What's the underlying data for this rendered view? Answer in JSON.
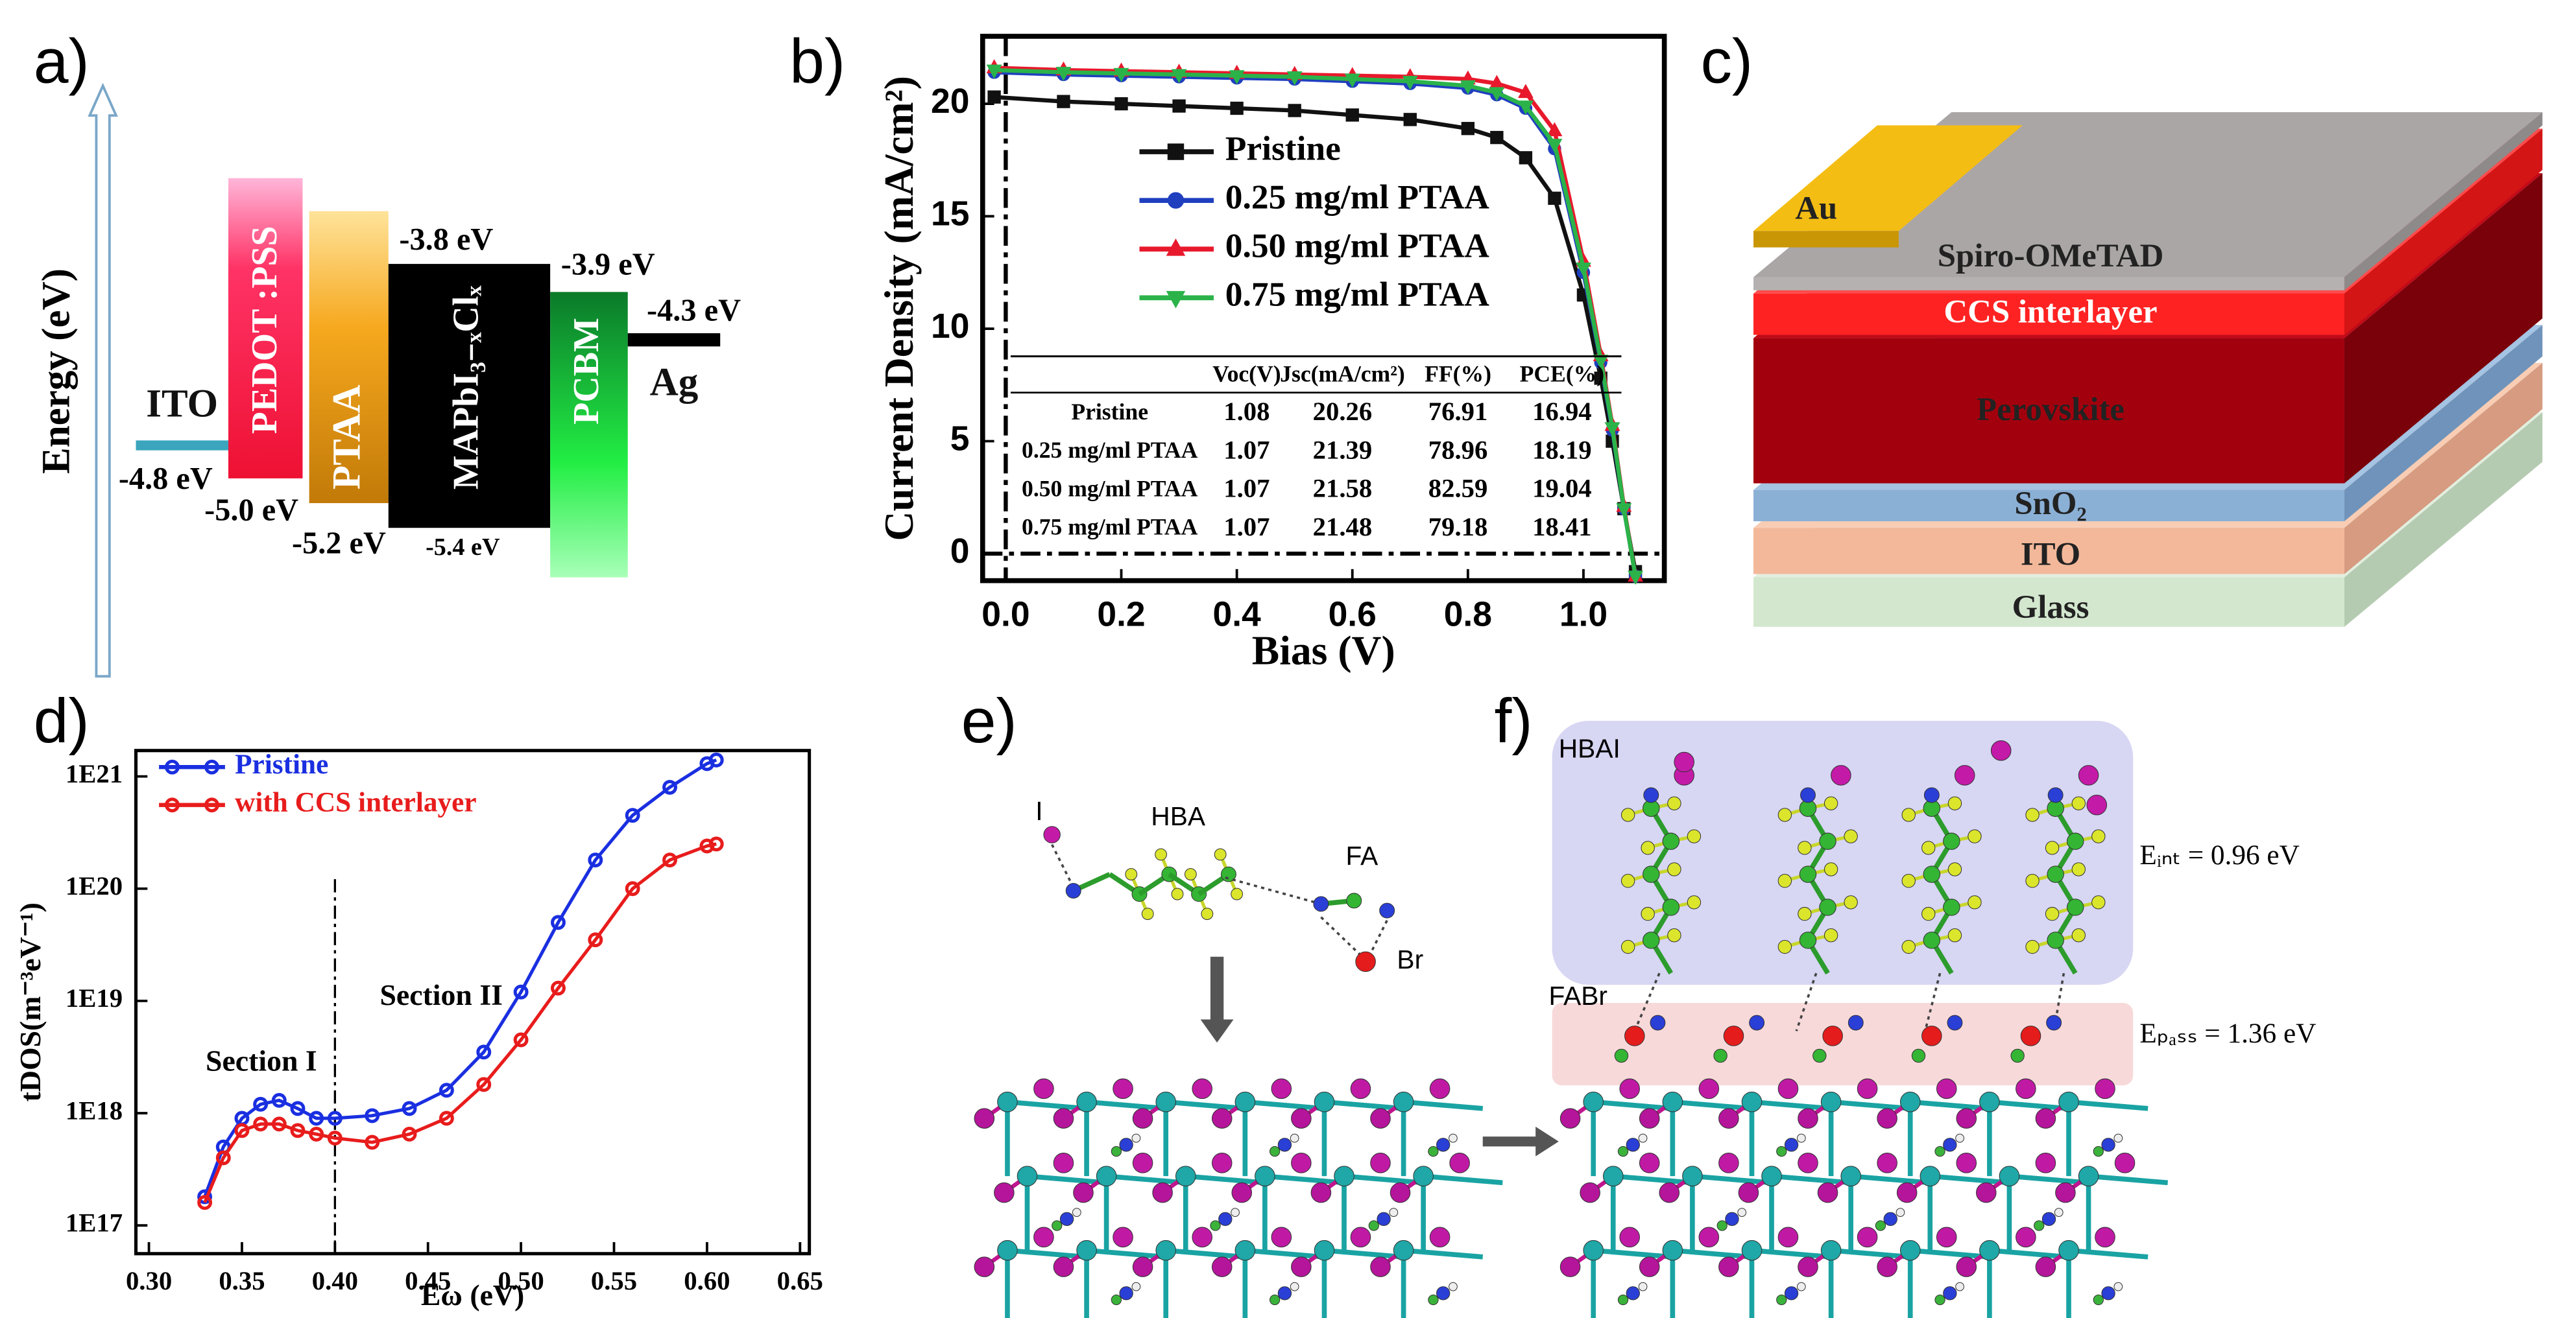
{
  "panel_labels": [
    "a)",
    "b)",
    "c)",
    "d)",
    "e)",
    "f)"
  ],
  "energy_diagram": {
    "axis_label": "Energy (eV)",
    "layers": [
      {
        "name": "ITO",
        "levels": [
          "-4.8 eV"
        ]
      },
      {
        "name": "PEDOT :PSS",
        "levels": [
          "-5.0 eV"
        ]
      },
      {
        "name": "PTAA",
        "levels": [
          "-5.2 eV"
        ]
      },
      {
        "name": "MAPbI₃₋ₓClₓ",
        "levels": [
          "-3.8 eV",
          "-5.4 eV"
        ]
      },
      {
        "name": "PCBM",
        "levels": [
          "-3.9 eV"
        ]
      },
      {
        "name": "Ag",
        "levels": [
          "-4.3 eV"
        ]
      }
    ]
  },
  "device_stack": {
    "electrode": "Au",
    "layers": [
      "Spiro-OMeTAD",
      "CCS interlayer",
      "Perovskite",
      "SnO₂",
      "ITO",
      "Glass"
    ]
  },
  "molecule_e": {
    "labels": [
      "I",
      "HBA",
      "FA",
      "Br"
    ]
  },
  "molecule_f": {
    "labels": [
      "HBAI",
      "FABr"
    ],
    "energies": [
      "Eᵢₙₜ = 0.96 eV",
      "Eₚₐₛₛ = 1.36 eV"
    ]
  },
  "chart_data": [
    {
      "type": "line",
      "x_label": "Bias (V)",
      "y_label": "Current Density (mA/cm²)",
      "x": [
        -0.02,
        0.1,
        0.2,
        0.3,
        0.4,
        0.5,
        0.6,
        0.7,
        0.8,
        0.85,
        0.9,
        0.95,
        1.0,
        1.03,
        1.05,
        1.07,
        1.09
      ],
      "series": [
        {
          "name": "Pristine",
          "color": "#111111",
          "marker": "square",
          "values": [
            20.3,
            20.1,
            20.0,
            19.9,
            19.8,
            19.7,
            19.5,
            19.3,
            18.9,
            18.5,
            17.6,
            15.8,
            11.5,
            7.8,
            5.0,
            2.0,
            -0.8
          ]
        },
        {
          "name": "0.25 mg/ml PTAA",
          "color": "#1f3fbf",
          "marker": "circle",
          "values": [
            21.4,
            21.3,
            21.25,
            21.2,
            21.15,
            21.1,
            21.0,
            20.9,
            20.7,
            20.4,
            19.8,
            18.0,
            12.5,
            8.5,
            5.5,
            2.0,
            -1.0
          ]
        },
        {
          "name": "0.50 mg/ml PTAA",
          "color": "#e8192c",
          "marker": "triangle-up",
          "values": [
            21.6,
            21.5,
            21.45,
            21.4,
            21.35,
            21.3,
            21.25,
            21.2,
            21.1,
            20.9,
            20.5,
            18.8,
            13.0,
            8.8,
            5.7,
            2.1,
            -1.0
          ]
        },
        {
          "name": "0.75 mg/ml PTAA",
          "color": "#2bb34a",
          "marker": "triangle-down",
          "values": [
            21.5,
            21.4,
            21.35,
            21.3,
            21.25,
            21.2,
            21.1,
            21.0,
            20.8,
            20.5,
            19.9,
            18.2,
            12.7,
            8.6,
            5.6,
            2.0,
            -1.0
          ]
        }
      ],
      "xlim": [
        -0.04,
        1.14
      ],
      "ylim": [
        -1.2,
        23
      ],
      "xticks": [
        {
          "value": 0,
          "label": "0.0"
        },
        0.2,
        0.4,
        0.6,
        0.8,
        {
          "value": 1,
          "label": "1.0"
        }
      ],
      "yticks": [
        0,
        5,
        10,
        15,
        20
      ],
      "legend": "upper center",
      "table": {
        "columns": [
          "Voc(V)",
          "Jsc(mA/cm²)",
          "FF(%)",
          "PCE(%)"
        ],
        "rows": [
          [
            "Pristine",
            1.08,
            20.26,
            76.91,
            16.94
          ],
          [
            "0.25 mg/ml PTAA",
            1.07,
            21.39,
            78.96,
            18.19
          ],
          [
            "0.50 mg/ml PTAA",
            1.07,
            21.58,
            82.59,
            19.04
          ],
          [
            "0.75 mg/ml PTAA",
            1.07,
            21.48,
            79.18,
            18.41
          ]
        ]
      }
    },
    {
      "type": "line",
      "yscale": "log",
      "x_label": "Eω (eV)",
      "y_label": "tDOS(m⁻³eV⁻¹)",
      "x": [
        0.33,
        0.34,
        0.35,
        0.36,
        0.37,
        0.38,
        0.39,
        0.4,
        0.42,
        0.44,
        0.46,
        0.48,
        0.5,
        0.52,
        0.54,
        0.56,
        0.58,
        0.6,
        0.605
      ],
      "series": [
        {
          "name": "Pristine",
          "color": "#1a2fe0",
          "values": [
            1.8e+17,
            5e+17,
            9e+17,
            1.2e+18,
            1.3e+18,
            1.1e+18,
            9e+17,
            9e+17,
            9.5e+17,
            1.1e+18,
            1.6e+18,
            3.5e+18,
            1.2e+19,
            5e+19,
            1.8e+20,
            4.5e+20,
            8e+20,
            1.3e+21,
            1.4e+21
          ]
        },
        {
          "name": "with CCS interlayer",
          "color": "#e81c1c",
          "values": [
            1.6e+17,
            4e+17,
            7e+17,
            8e+17,
            8e+17,
            7e+17,
            6.5e+17,
            6e+17,
            5.5e+17,
            6.5e+17,
            9e+17,
            1.8e+18,
            4.5e+18,
            1.3e+19,
            3.5e+19,
            1e+20,
            1.8e+20,
            2.4e+20,
            2.5e+20
          ]
        }
      ],
      "xlim": [
        0.293,
        0.655
      ],
      "ylim": [
        5.6e+16,
        1.7e+21
      ],
      "xticks": [
        {
          "value": 0.3,
          "label": "0.30"
        },
        0.35,
        {
          "value": 0.4,
          "label": "0.40"
        },
        0.45,
        {
          "value": 0.5,
          "label": "0.50"
        },
        0.55,
        {
          "value": 0.6,
          "label": "0.60"
        },
        0.65
      ],
      "yticks": [
        {
          "value": 1e+17,
          "label": "1E17"
        },
        {
          "value": 1e+18,
          "label": "1E18"
        },
        {
          "value": 1e+19,
          "label": "1E19"
        },
        {
          "value": 1e+20,
          "label": "1E20"
        },
        {
          "value": 1e+21,
          "label": "1E21"
        }
      ],
      "legend": "upper left",
      "divider_x": 0.4,
      "annotations": [
        "Section I",
        "Section II"
      ]
    }
  ]
}
